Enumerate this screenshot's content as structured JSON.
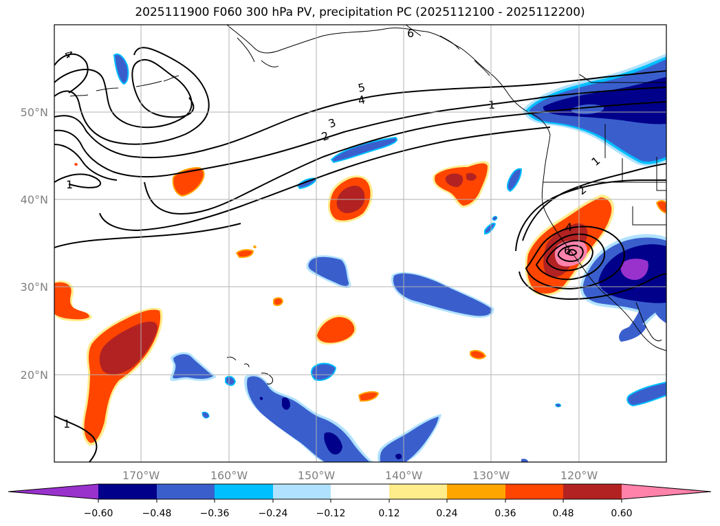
{
  "title": "2025111900 F060 300 hPa PV, precipitation PC (2025112100 - 2025112200)",
  "lat_labels": [
    "50°N",
    "40°N",
    "30°N",
    "20°N"
  ],
  "lon_labels": [
    "170°W",
    "160°W",
    "150°W",
    "140°W",
    "130°W",
    "120°W"
  ],
  "colorbar": {
    "levels": [
      "−0.60",
      "−0.48",
      "−0.36",
      "−0.24",
      "−0.12",
      "0.12",
      "0.24",
      "0.36",
      "0.48",
      "0.60"
    ],
    "colors": [
      "#9932cc",
      "#00008b",
      "#3a5fcd",
      "#00bfff",
      "#b0e2ff",
      "#ffffff",
      "#ffec8b",
      "#ffa500",
      "#ff4500",
      "#b22222",
      "#ff82ab"
    ]
  },
  "contour_labels": [
    "1",
    "2",
    "3",
    "4",
    "5",
    "6",
    "1",
    "1",
    "2",
    "4",
    "6",
    "1",
    "4"
  ],
  "colors": {
    "positive_dark": "#b22222",
    "positive": "#ff4500",
    "positive_edge": "#ffa500",
    "positive_rim": "#ffec8b",
    "negative": "#3a5fcd",
    "negative_dark": "#00008b",
    "negative_edge": "#00bfff",
    "negative_rim": "#b0e2ff",
    "pink": "#ff82ab",
    "purple": "#9932cc"
  }
}
